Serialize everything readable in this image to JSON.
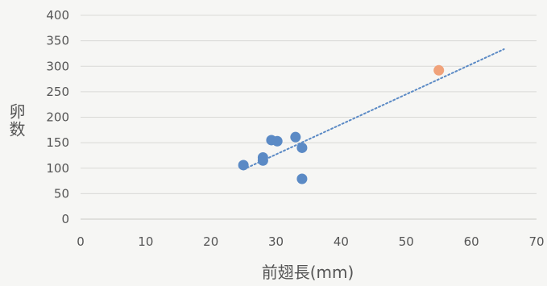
{
  "chart_data": {
    "type": "scatter",
    "title": "",
    "xlabel": "前翅長(mm)",
    "ylabel": "卵数",
    "xlim": [
      0,
      70
    ],
    "ylim": [
      0,
      400
    ],
    "x_ticks": [
      0,
      10,
      20,
      30,
      40,
      50,
      60,
      70
    ],
    "y_ticks": [
      0,
      50,
      100,
      150,
      200,
      250,
      300,
      350,
      400
    ],
    "grid": true,
    "legend": "none",
    "series": [
      {
        "color": "#5b8ac5",
        "points": [
          {
            "x": 25,
            "y": 106
          },
          {
            "x": 28,
            "y": 115
          },
          {
            "x": 28,
            "y": 121
          },
          {
            "x": 29.3,
            "y": 155
          },
          {
            "x": 30.2,
            "y": 153
          },
          {
            "x": 33,
            "y": 161
          },
          {
            "x": 34,
            "y": 140
          },
          {
            "x": 34,
            "y": 79
          }
        ]
      },
      {
        "color": "#f0a27a",
        "points": [
          {
            "x": 55,
            "y": 292
          }
        ]
      }
    ],
    "trendline": {
      "type": "linear",
      "style": "dotted",
      "color": "#5b8ac5",
      "x_range": [
        25,
        65
      ],
      "slope": 5.9,
      "intercept": -50
    }
  }
}
